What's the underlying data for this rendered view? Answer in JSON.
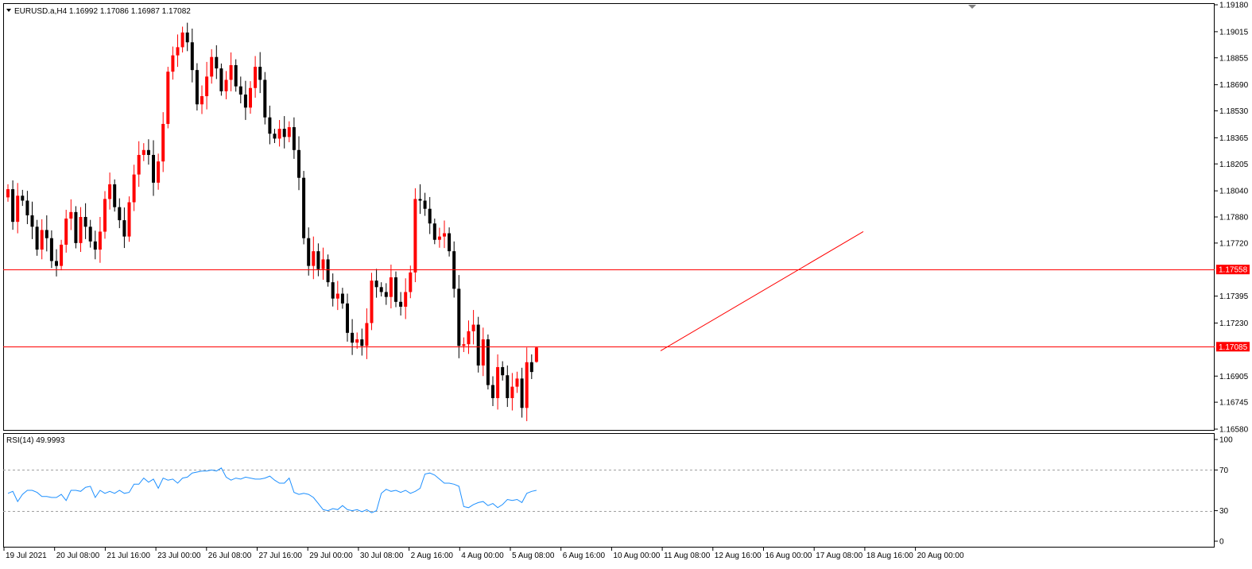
{
  "main_panel": {
    "header": "EURUSD.a,H4  1.16992 1.17086 1.16987 1.17082",
    "price_levels": [
      "1.19180",
      "1.19015",
      "1.18855",
      "1.18690",
      "1.18530",
      "1.18365",
      "1.18205",
      "1.18040",
      "1.17880",
      "1.17720",
      "1.17395",
      "1.17230",
      "1.16905",
      "1.16745",
      "1.16580"
    ],
    "hline_labels": [
      "1.17558",
      "1.17085"
    ]
  },
  "rsi_panel": {
    "header": "RSI(14) 49.9993",
    "levels": [
      "100",
      "70",
      "30",
      "0"
    ]
  },
  "time_labels": [
    "19 Jul 2021",
    "20 Jul 08:00",
    "21 Jul 16:00",
    "23 Jul 00:00",
    "26 Jul 08:00",
    "27 Jul 16:00",
    "29 Jul 00:00",
    "30 Jul 08:00",
    "2 Aug 16:00",
    "4 Aug 00:00",
    "5 Aug 08:00",
    "6 Aug 16:00",
    "10 Aug 00:00",
    "11 Aug 08:00",
    "12 Aug 16:00",
    "16 Aug 00:00",
    "17 Aug 08:00",
    "18 Aug 16:00",
    "20 Aug 00:00"
  ],
  "colors": {
    "bull": "#ff0000",
    "bear": "#000000",
    "rsi": "#1e90ff",
    "level_line": "#ff0000",
    "label_bg": "#ff0000"
  },
  "chart_data": [
    {
      "type": "candlestick",
      "symbol": "EURUSD.a",
      "timeframe": "H4",
      "ohlc_last": {
        "open": 1.16992,
        "high": 1.17086,
        "low": 1.16987,
        "close": 1.17082
      },
      "ylim": [
        1.1658,
        1.1918
      ],
      "horizontal_lines": [
        1.17558,
        1.17085
      ],
      "trendline": [
        [
          1.1706,
          1.1779
        ]
      ],
      "closes": [
        1.1805,
        1.1785,
        1.1801,
        1.1798,
        1.1789,
        1.1782,
        1.1768,
        1.178,
        1.1775,
        1.1761,
        1.1758,
        1.1771,
        1.1787,
        1.1791,
        1.1772,
        1.1788,
        1.1782,
        1.1773,
        1.1768,
        1.1779,
        1.1799,
        1.1808,
        1.1794,
        1.1786,
        1.1776,
        1.1797,
        1.1814,
        1.1826,
        1.1829,
        1.1826,
        1.1809,
        1.1822,
        1.1845,
        1.1877,
        1.1887,
        1.1892,
        1.1901,
        1.1895,
        1.1878,
        1.1857,
        1.1862,
        1.1874,
        1.1886,
        1.1879,
        1.1865,
        1.1872,
        1.1881,
        1.1868,
        1.1863,
        1.1855,
        1.1867,
        1.188,
        1.1872,
        1.1849,
        1.1839,
        1.1836,
        1.1842,
        1.1837,
        1.1843,
        1.1829,
        1.1812,
        1.1775,
        1.1758,
        1.1767,
        1.1756,
        1.1762,
        1.1748,
        1.1738,
        1.1741,
        1.1735,
        1.1717,
        1.1711,
        1.1713,
        1.1709,
        1.1723,
        1.1749,
        1.1745,
        1.1742,
        1.1739,
        1.1751,
        1.1736,
        1.1733,
        1.1742,
        1.1754,
        1.1799,
        1.1798,
        1.1793,
        1.1784,
        1.1774,
        1.1776,
        1.1778,
        1.1767,
        1.1744,
        1.1709,
        1.171,
        1.1718,
        1.1722,
        1.1697,
        1.1713,
        1.1685,
        1.1677,
        1.1696,
        1.1691,
        1.1677,
        1.1684,
        1.1689,
        1.1671,
        1.1699,
        1.1693,
        1.1708
      ]
    },
    {
      "type": "line",
      "name": "RSI(14)",
      "ylim": [
        0,
        100
      ],
      "reference_levels": [
        70,
        30
      ],
      "last_value": 49.9993,
      "values": [
        47,
        49,
        39,
        46,
        50,
        50,
        48,
        44,
        44,
        43,
        43,
        46,
        40,
        50,
        50,
        49,
        53,
        54,
        43,
        50,
        47,
        49,
        47,
        50,
        47,
        48,
        56,
        56,
        62,
        58,
        61,
        52,
        62,
        60,
        61,
        57,
        62,
        63,
        67,
        68,
        69,
        69,
        70,
        69,
        72,
        63,
        60,
        62,
        61,
        63,
        62,
        61,
        61,
        62,
        64,
        60,
        57,
        57,
        62,
        48,
        46,
        47,
        46,
        43,
        37,
        31,
        30,
        32,
        31,
        35,
        31,
        30,
        31,
        29,
        31,
        28,
        30,
        47,
        51,
        49,
        50,
        48,
        50,
        47,
        49,
        52,
        66,
        67,
        65,
        61,
        57,
        57,
        56,
        54,
        34,
        33,
        36,
        38,
        39,
        35,
        37,
        33,
        36,
        41,
        40,
        41,
        38,
        47,
        49,
        50
      ]
    }
  ]
}
